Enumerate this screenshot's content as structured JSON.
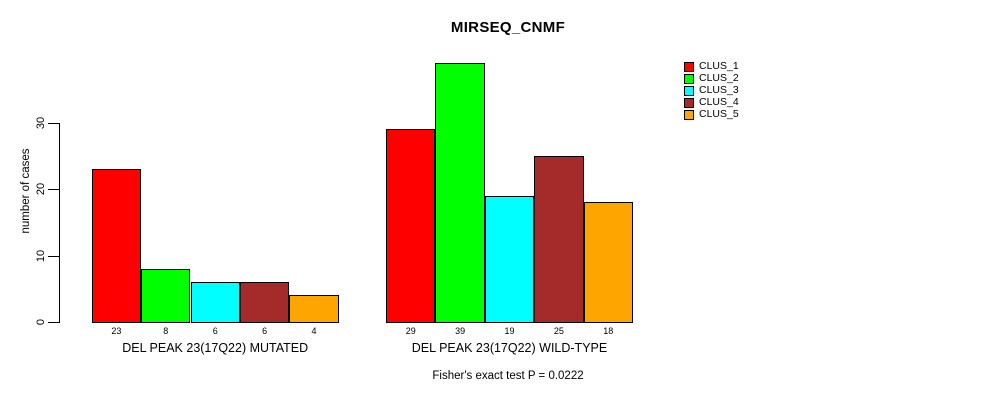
{
  "chart_data": {
    "type": "bar",
    "title": "MIRSEQ_CNMF",
    "ylabel": "number of cases",
    "xlabel": "",
    "ylim": [
      0,
      40
    ],
    "yticks": [
      0,
      10,
      20,
      30
    ],
    "grid": false,
    "legend_position": "right-inside",
    "bar_value_labels": true,
    "categories": [
      "DEL PEAK 23(17Q22) MUTATED",
      "DEL PEAK 23(17Q22) WILD-TYPE"
    ],
    "series": [
      {
        "name": "CLUS_1",
        "color": "#FF0000",
        "values": [
          23,
          29
        ]
      },
      {
        "name": "CLUS_2",
        "color": "#00FF00",
        "values": [
          8,
          39
        ]
      },
      {
        "name": "CLUS_3",
        "color": "#00FFFF",
        "values": [
          6,
          19
        ]
      },
      {
        "name": "CLUS_4",
        "color": "#A52A2A",
        "values": [
          6,
          25
        ]
      },
      {
        "name": "CLUS_5",
        "color": "#FFA500",
        "values": [
          4,
          18
        ]
      }
    ],
    "footnote": "Fisher's exact test P = 0.0222"
  }
}
